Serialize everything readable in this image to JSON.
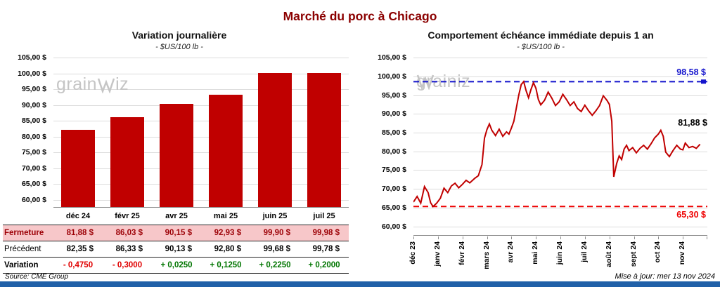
{
  "page": {
    "title": "Marché du porc à Chicago",
    "source": "Source: CME Group",
    "updated": "Mise à jour: mer 13 nov 2024"
  },
  "watermark": {
    "prefix": "grain",
    "suffix": "iz"
  },
  "colors": {
    "bar_red": "#C00000",
    "line_red": "#C00000",
    "max_blue": "#1414CC",
    "min_red": "#EE0000",
    "negative": "#E00000",
    "positive": "#007500",
    "closing_row_bg": "#F7C7C9",
    "closing_row_text": "#9C0006",
    "title_dark_red": "#8B0000",
    "bottom_bar_blue": "#2060A8",
    "watermark_gray": "#C5C5C5"
  },
  "chart_data": [
    {
      "type": "bar",
      "title": "Variation journalière",
      "subtitle": "- $US/100 lb -",
      "categories": [
        "déc 24",
        "févr 25",
        "avr 25",
        "mai 25",
        "juin 25",
        "juil 25"
      ],
      "values": [
        81.88,
        86.03,
        90.15,
        92.93,
        99.9,
        99.98
      ],
      "ylim": [
        60,
        105
      ],
      "ystep": 5,
      "baseline": 57.5,
      "ytick_labels": [
        "105,00 $",
        "100,00 $",
        "95,00 $",
        "90,00 $",
        "85,00 $",
        "80,00 $",
        "75,00 $",
        "70,00 $",
        "65,00 $",
        "60,00 $"
      ],
      "bar_color": "#C00000",
      "grid": true,
      "legend": "none"
    },
    {
      "type": "line",
      "title": "Comportement échéance immédiate depuis 1 an",
      "subtitle": "- $US/100 lb -",
      "x_labels": [
        "déc 23",
        "janv 24",
        "févr 24",
        "mars 24",
        "avr 24",
        "mai 24",
        "juin 24",
        "juil 24",
        "août 24",
        "sept 24",
        "oct 24",
        "nov 24"
      ],
      "ylim": [
        60,
        105
      ],
      "ystep": 5,
      "baseline": 57.5,
      "ytick_labels": [
        "105,00 $",
        "100,00 $",
        "95,00 $",
        "90,00 $",
        "85,00 $",
        "80,00 $",
        "75,00 $",
        "70,00 $",
        "65,00 $",
        "60,00 $"
      ],
      "line_color": "#C00000",
      "max_line": {
        "value": 98.58,
        "label": "98,58 $",
        "color": "#1414CC"
      },
      "min_line": {
        "value": 65.3,
        "label": "65,30 $",
        "color": "#EE0000"
      },
      "last_point_label": "81,88 $",
      "grid": true,
      "legend": "none",
      "points": [
        [
          0,
          66.5
        ],
        [
          0.15,
          68
        ],
        [
          0.3,
          66.2
        ],
        [
          0.45,
          70.6
        ],
        [
          0.6,
          69
        ],
        [
          0.7,
          66.3
        ],
        [
          0.8,
          65.3
        ],
        [
          0.95,
          66.2
        ],
        [
          1.1,
          67.5
        ],
        [
          1.25,
          70.2
        ],
        [
          1.4,
          69
        ],
        [
          1.55,
          70.8
        ],
        [
          1.7,
          71.5
        ],
        [
          1.85,
          70.3
        ],
        [
          2,
          71.2
        ],
        [
          2.15,
          72.3
        ],
        [
          2.3,
          71.6
        ],
        [
          2.5,
          72.8
        ],
        [
          2.65,
          73.5
        ],
        [
          2.8,
          76.5
        ],
        [
          2.9,
          83.5
        ],
        [
          3,
          85.8
        ],
        [
          3.1,
          87.3
        ],
        [
          3.2,
          85.6
        ],
        [
          3.35,
          84.2
        ],
        [
          3.5,
          85.9
        ],
        [
          3.65,
          84
        ],
        [
          3.8,
          85.2
        ],
        [
          3.9,
          84.6
        ],
        [
          4,
          86.2
        ],
        [
          4.1,
          88
        ],
        [
          4.2,
          91.5
        ],
        [
          4.3,
          95
        ],
        [
          4.4,
          97.8
        ],
        [
          4.5,
          98.58
        ],
        [
          4.6,
          96.2
        ],
        [
          4.7,
          94.3
        ],
        [
          4.8,
          96.5
        ],
        [
          4.9,
          98.3
        ],
        [
          5,
          96.8
        ],
        [
          5.1,
          93.8
        ],
        [
          5.2,
          92.4
        ],
        [
          5.35,
          93.6
        ],
        [
          5.5,
          95.8
        ],
        [
          5.65,
          94.2
        ],
        [
          5.8,
          92.2
        ],
        [
          5.95,
          93.2
        ],
        [
          6.1,
          95.2
        ],
        [
          6.25,
          93.8
        ],
        [
          6.4,
          92.2
        ],
        [
          6.55,
          93.2
        ],
        [
          6.7,
          91.4
        ],
        [
          6.85,
          90.6
        ],
        [
          7,
          92.3
        ],
        [
          7.15,
          90.8
        ],
        [
          7.3,
          89.6
        ],
        [
          7.45,
          90.8
        ],
        [
          7.6,
          92.2
        ],
        [
          7.75,
          94.8
        ],
        [
          7.9,
          93.6
        ],
        [
          8,
          92.5
        ],
        [
          8.1,
          88
        ],
        [
          8.18,
          73.2
        ],
        [
          8.3,
          76.8
        ],
        [
          8.4,
          78.8
        ],
        [
          8.5,
          77.8
        ],
        [
          8.6,
          80.6
        ],
        [
          8.7,
          81.6
        ],
        [
          8.8,
          80.2
        ],
        [
          8.95,
          81
        ],
        [
          9.1,
          79.6
        ],
        [
          9.25,
          80.8
        ],
        [
          9.4,
          81.6
        ],
        [
          9.55,
          80.6
        ],
        [
          9.7,
          82
        ],
        [
          9.85,
          83.6
        ],
        [
          10,
          84.6
        ],
        [
          10.1,
          85.6
        ],
        [
          10.2,
          84
        ],
        [
          10.3,
          79.8
        ],
        [
          10.45,
          78.6
        ],
        [
          10.6,
          80.2
        ],
        [
          10.75,
          81.6
        ],
        [
          10.9,
          80.6
        ],
        [
          11,
          80.4
        ],
        [
          11.1,
          82.2
        ],
        [
          11.25,
          81
        ],
        [
          11.4,
          81.3
        ],
        [
          11.55,
          80.8
        ],
        [
          11.7,
          81.88
        ]
      ]
    }
  ],
  "table": {
    "rows": [
      {
        "name": "fermeture",
        "label": "Fermeture",
        "style": "closing",
        "values": [
          "81,88 $",
          "86,03 $",
          "90,15 $",
          "92,93 $",
          "99,90 $",
          "99,98 $"
        ]
      },
      {
        "name": "precedent",
        "label": "Précédent",
        "style": "previous",
        "values": [
          "82,35 $",
          "86,33 $",
          "90,13 $",
          "92,80 $",
          "99,68 $",
          "99,78 $"
        ]
      },
      {
        "name": "variation",
        "label": "Variation",
        "style": "variation",
        "values": [
          "- 0,4750",
          "- 0,3000",
          "+ 0,0250",
          "+ 0,1250",
          "+ 0,2250",
          "+ 0,2000"
        ]
      }
    ]
  }
}
